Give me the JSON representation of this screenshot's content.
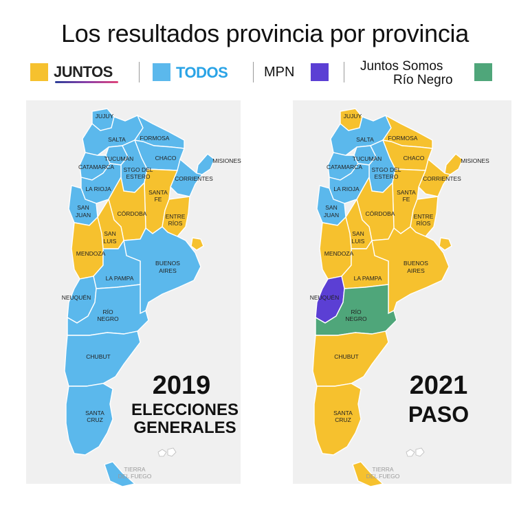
{
  "title": "Los resultados provincia por provincia",
  "legend": {
    "juntos": "JUNTOS",
    "todos": "TODOS",
    "mpn": "MPN",
    "jsrn_line1": "Juntos Somos",
    "jsrn_line2": "Río Negro"
  },
  "colors": {
    "juntos": "#f6c12e",
    "todos": "#5bb8ec",
    "mpn": "#5b3fd4",
    "jsrn": "#4fa67a",
    "background": "#f0f0f0"
  },
  "maps": [
    {
      "year": "2019",
      "subtitle_line1": "ELECCIONES",
      "subtitle_line2": "GENERALES",
      "winners": {
        "jujuy": "todos",
        "salta": "todos",
        "formosa": "todos",
        "tucuman": "todos",
        "chaco": "todos",
        "catamarca": "todos",
        "sgo_estero": "todos",
        "misiones": "todos",
        "corrientes": "todos",
        "la_rioja": "todos",
        "santa_fe": "juntos",
        "san_juan": "todos",
        "cordoba": "juntos",
        "entre_rios": "juntos",
        "san_luis": "juntos",
        "mendoza": "juntos",
        "caba": "juntos",
        "buenos_aires": "todos",
        "la_pampa": "todos",
        "neuquen": "todos",
        "rio_negro": "todos",
        "chubut": "todos",
        "santa_cruz": "todos",
        "tierra_del_fuego": "todos"
      }
    },
    {
      "year": "2021",
      "subtitle_line1": "PASO",
      "subtitle_line2": "",
      "winners": {
        "jujuy": "juntos",
        "salta": "todos",
        "formosa": "juntos",
        "tucuman": "todos",
        "chaco": "juntos",
        "catamarca": "todos",
        "sgo_estero": "todos",
        "misiones": "juntos",
        "corrientes": "juntos",
        "la_rioja": "todos",
        "santa_fe": "juntos",
        "san_juan": "todos",
        "cordoba": "juntos",
        "entre_rios": "juntos",
        "san_luis": "juntos",
        "mendoza": "juntos",
        "caba": "juntos",
        "buenos_aires": "juntos",
        "la_pampa": "juntos",
        "neuquen": "mpn",
        "rio_negro": "jsrn",
        "chubut": "juntos",
        "santa_cruz": "juntos",
        "tierra_del_fuego": "juntos"
      }
    }
  ],
  "labels": {
    "jujuy": "JUJUY",
    "salta": "SALTA",
    "formosa": "FORMOSA",
    "tucuman": "TUCUMÁN",
    "chaco": "CHACO",
    "misiones": "MISIONES",
    "catamarca": "CATAMARCA",
    "sgo1": "STGO DEL",
    "sgo2": "ESTERO",
    "corrientes": "CORRIENTES",
    "la_rioja": "LA RIOJA",
    "santa1": "SANTA",
    "santa2": "FE",
    "san_juan1": "SAN",
    "san_juan2": "JUAN",
    "cordoba": "CÓRDOBA",
    "entre1": "ENTRE",
    "entre2": "RÍOS",
    "san_luis1": "SAN",
    "san_luis2": "LUIS",
    "mendoza": "MENDOZA",
    "ba1": "BUENOS",
    "ba2": "AIRES",
    "la_pampa": "LA PAMPA",
    "neuquen": "NEUQUÉN",
    "rio1": "RÍO",
    "rio2": "NEGRO",
    "chubut": "CHUBUT",
    "sc1": "SANTA",
    "sc2": "CRUZ",
    "tdf1": "TIERRA",
    "tdf2": "DEL FUEGO"
  }
}
